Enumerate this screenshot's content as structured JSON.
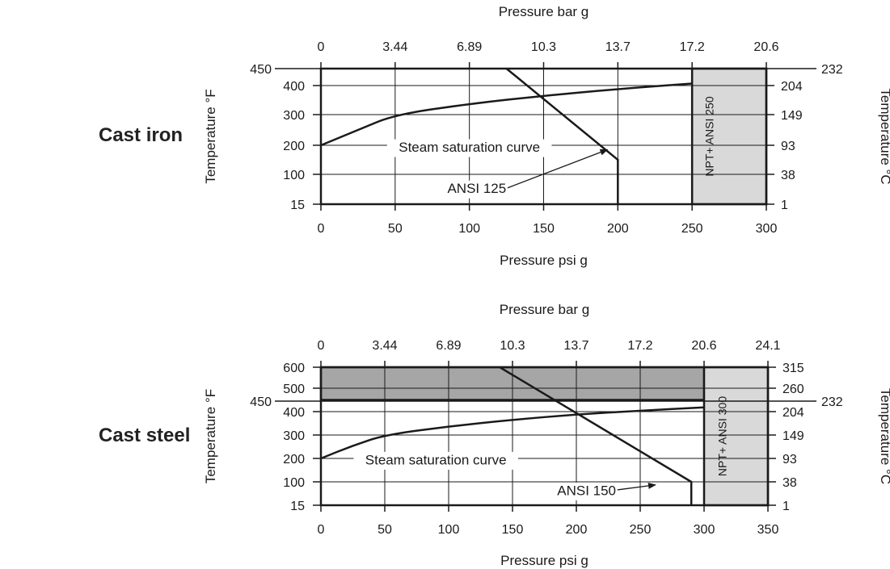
{
  "colors": {
    "line": "#1a1a1a",
    "shade_light": "#d9d9d9",
    "shade_dark": "#a6a6a6",
    "background": "#ffffff"
  },
  "chart_data": [
    {
      "type": "line",
      "panel_label": "Cast iron",
      "xlabel": "Pressure psi g",
      "x2label": "Pressure bar g",
      "ylabel": "Temperature  °F",
      "y2label": "Temperature  °C",
      "xlim": [
        0,
        300
      ],
      "ylim": [
        15,
        450
      ],
      "x_ticks": [
        0,
        50,
        100,
        150,
        200,
        250,
        300
      ],
      "x2_tick_labels": [
        "0",
        "3.44",
        "6.89",
        "10.3",
        "13.7",
        "17.2",
        "20.6"
      ],
      "y_ticks": [
        15,
        100,
        200,
        300,
        400
      ],
      "y_label_extra": "450",
      "y2_tick_labels": [
        "1",
        "38",
        "93",
        "149",
        "204"
      ],
      "y2_label_extra": "232",
      "grid": true,
      "series": [
        {
          "name": "Steam saturation curve",
          "points": [
            [
              0,
              200
            ],
            [
              25,
              250
            ],
            [
              50,
              300
            ],
            [
              100,
              337
            ],
            [
              150,
              365
            ],
            [
              200,
              388
            ],
            [
              250,
              406
            ]
          ]
        },
        {
          "name": "ANSI 125",
          "points": [
            [
              125,
              450
            ],
            [
              200,
              150
            ],
            [
              200,
              15
            ]
          ]
        }
      ],
      "shaded_regions": [
        {
          "label": "NPT+ ANSI 250",
          "x": [
            250,
            300
          ],
          "y": [
            15,
            450
          ],
          "shade": "light"
        }
      ],
      "annotations": [
        {
          "text": "Steam saturation curve",
          "x": 100,
          "y": 190
        },
        {
          "text": "ANSI 125",
          "x": 105,
          "y": 57,
          "arrow_to": [
            193,
            185
          ]
        }
      ]
    },
    {
      "type": "line",
      "panel_label": "Cast steel",
      "xlabel": "Pressure psi g",
      "x2label": "Pressure bar g",
      "ylabel": "Temperature  °F",
      "y2label": "Temperature  °C",
      "xlim": [
        0,
        350
      ],
      "ylim": [
        15,
        600
      ],
      "x_ticks": [
        0,
        50,
        100,
        150,
        200,
        250,
        300,
        350
      ],
      "x2_tick_labels": [
        "0",
        "3.44",
        "6.89",
        "10.3",
        "13.7",
        "17.2",
        "20.6",
        "24.1"
      ],
      "y_ticks": [
        15,
        100,
        200,
        300,
        400,
        500,
        600
      ],
      "y_label_extra": "450",
      "y2_tick_labels": [
        "1",
        "38",
        "93",
        "149",
        "204",
        "260",
        "315"
      ],
      "y2_label_extra": "232",
      "grid": true,
      "series": [
        {
          "name": "Steam saturation curve",
          "points": [
            [
              0,
              200
            ],
            [
              25,
              255
            ],
            [
              50,
              300
            ],
            [
              100,
              337
            ],
            [
              150,
              365
            ],
            [
              200,
              388
            ],
            [
              250,
              404
            ],
            [
              300,
              418
            ]
          ]
        },
        {
          "name": "ANSI 150",
          "points": [
            [
              140,
              600
            ],
            [
              290,
              100
            ],
            [
              290,
              15
            ]
          ]
        }
      ],
      "shaded_regions": [
        {
          "label": "",
          "x": [
            0,
            300
          ],
          "y": [
            450,
            600
          ],
          "shade": "dark"
        },
        {
          "label": "NPT+ ANSI 300",
          "x": [
            300,
            350
          ],
          "y": [
            15,
            600
          ],
          "shade": "light"
        }
      ],
      "annotations": [
        {
          "text": "Steam saturation curve",
          "x": 90,
          "y": 190
        },
        {
          "text": "ANSI 150",
          "x": 208,
          "y": 65,
          "arrow_to": [
            262,
            89
          ]
        }
      ]
    }
  ]
}
